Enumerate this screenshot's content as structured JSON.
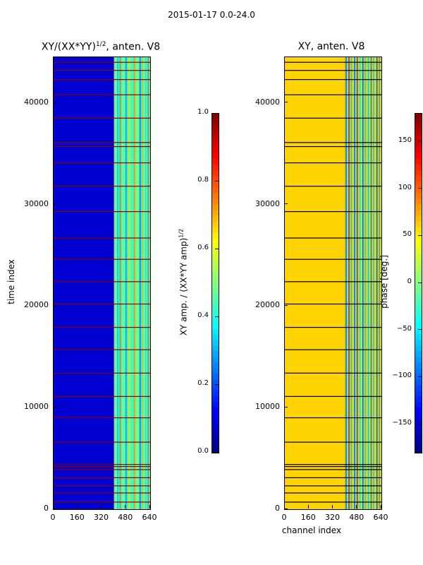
{
  "figure": {
    "suptitle": "2015-01-17 0.0-24.0"
  },
  "chart_data": [
    {
      "type": "heatmap",
      "title_text": "XY/(XX*YY)",
      "title_exponent": "1/2",
      "title_suffix": ", anten. V8",
      "xlabel": "",
      "ylabel": "time index",
      "xlim": [
        0,
        640
      ],
      "ylim": [
        0,
        44500
      ],
      "xticks": [
        "0",
        "160",
        "320",
        "480",
        "640"
      ],
      "xtick_values": [
        0,
        160,
        320,
        480,
        640
      ],
      "yticks": [
        "0",
        "10000",
        "20000",
        "30000",
        "40000"
      ],
      "ytick_values": [
        0,
        10000,
        20000,
        30000,
        40000
      ],
      "colorbar": {
        "label_text": "XY amp. / (XX*YY amp)",
        "label_exponent": "1/2",
        "range": [
          0.0,
          1.0
        ],
        "ticks": [
          "0.0",
          "0.2",
          "0.4",
          "0.6",
          "0.8",
          "1.0"
        ],
        "tick_values": [
          0.0,
          0.2,
          0.4,
          0.6,
          0.8,
          1.0
        ]
      },
      "colormap": [
        "#00007f",
        "#0000ff",
        "#007fff",
        "#00ffff",
        "#7fff7f",
        "#ffff00",
        "#ff7f00",
        "#ff0000",
        "#7f0000"
      ],
      "regions": [
        {
          "channels": [
            0,
            400
          ],
          "level": 0.08
        },
        {
          "channels": [
            400,
            640
          ],
          "level": 0.45
        }
      ],
      "bad_rows": [
        700,
        1600,
        2300,
        3100,
        3900,
        4200,
        4400,
        6600,
        9000,
        11100,
        13400,
        15700,
        17900,
        20200,
        22400,
        24600,
        26700,
        29300,
        31800,
        34100,
        35700,
        36100,
        38500,
        40800,
        42300,
        43200,
        44000
      ],
      "bad_color": "#8b0000"
    },
    {
      "type": "heatmap",
      "title_text": "XY, anten. V8",
      "xlabel": "channel index",
      "ylabel": "",
      "xlim": [
        0,
        640
      ],
      "ylim": [
        0,
        44500
      ],
      "xticks": [
        "0",
        "160",
        "320",
        "480",
        "640"
      ],
      "xtick_values": [
        0,
        160,
        320,
        480,
        640
      ],
      "yticks": [
        "0",
        "10000",
        "20000",
        "30000",
        "40000"
      ],
      "ytick_values": [
        0,
        10000,
        20000,
        30000,
        40000
      ],
      "colorbar": {
        "label_text": "phase [deg.]",
        "range": [
          -180,
          180
        ],
        "ticks": [
          "−150",
          "−100",
          "−50",
          "0",
          "50",
          "100",
          "150"
        ],
        "tick_values": [
          -150,
          -100,
          -50,
          0,
          50,
          100,
          150
        ]
      },
      "colormap": [
        "#00007f",
        "#0000ff",
        "#007fff",
        "#00ffff",
        "#7fff7f",
        "#ffff00",
        "#ff7f00",
        "#ff0000",
        "#7f0000"
      ],
      "regions": [
        {
          "channels": [
            0,
            400
          ],
          "level": 60
        },
        {
          "channels": [
            400,
            640
          ],
          "level": 10
        }
      ],
      "bad_rows": [
        700,
        1600,
        2300,
        3100,
        3900,
        4200,
        4400,
        6600,
        9000,
        11100,
        13400,
        15700,
        17900,
        20200,
        22400,
        24600,
        26700,
        29300,
        31800,
        34100,
        35700,
        36100,
        38500,
        40800,
        42300,
        43200,
        44000
      ],
      "bad_color": "#000000"
    }
  ]
}
